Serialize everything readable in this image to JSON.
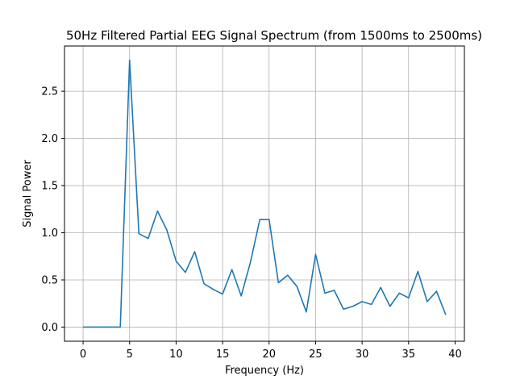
{
  "chart_data": {
    "type": "line",
    "title": "50Hz Filtered Partial EEG Signal Spectrum (from 1500ms to 2500ms)",
    "xlabel": "Frequency (Hz)",
    "ylabel": "Signal Power",
    "xlim": [
      -2,
      41
    ],
    "ylim": [
      -0.15,
      2.98
    ],
    "xticks": [
      0,
      5,
      10,
      15,
      20,
      25,
      30,
      35,
      40
    ],
    "yticks": [
      0.0,
      0.5,
      1.0,
      1.5,
      2.0,
      2.5
    ],
    "xtick_labels": [
      "0",
      "5",
      "10",
      "15",
      "20",
      "25",
      "30",
      "35",
      "40"
    ],
    "ytick_labels": [
      "0.0",
      "0.5",
      "1.0",
      "1.5",
      "2.0",
      "2.5"
    ],
    "grid": true,
    "line_color": "#1f77b4",
    "series": [
      {
        "x": [
          0,
          1,
          2,
          3,
          4,
          5,
          6,
          7,
          8,
          9,
          10,
          11,
          12,
          13,
          14,
          15,
          16,
          17,
          18,
          19,
          20,
          21,
          22,
          23,
          24,
          25,
          26,
          27,
          28,
          29,
          30,
          31,
          32,
          33,
          34,
          35,
          36,
          37,
          38,
          39
        ],
        "values": [
          0.0,
          0.0,
          0.0,
          0.0,
          0.0,
          2.83,
          0.99,
          0.94,
          1.23,
          1.03,
          0.7,
          0.58,
          0.8,
          0.46,
          0.4,
          0.35,
          0.61,
          0.33,
          0.69,
          1.14,
          1.14,
          0.47,
          0.55,
          0.43,
          0.16,
          0.77,
          0.36,
          0.39,
          0.19,
          0.22,
          0.27,
          0.24,
          0.42,
          0.22,
          0.36,
          0.31,
          0.59,
          0.27,
          0.38,
          0.13
        ]
      }
    ]
  }
}
